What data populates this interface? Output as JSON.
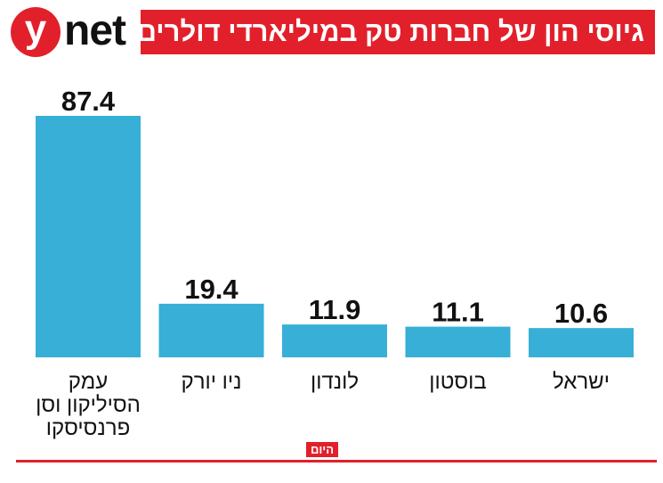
{
  "brand": {
    "y_letter": "y",
    "net_text": "net"
  },
  "header": {
    "title": "גיוסי הון של חברות טק במיליארדי דולרים"
  },
  "source": {
    "label": "היום"
  },
  "colors": {
    "bar": "#38afd6",
    "accent": "#e2202b",
    "text": "#111111"
  },
  "chart_data": {
    "type": "bar",
    "title": "גיוסי הון של חברות טק במיליארדי דולרים",
    "xlabel": "",
    "ylabel": "",
    "ylim": [
      0,
      87.4
    ],
    "grid": false,
    "categories": [
      [
        "עמק",
        "הסיליקון וסן",
        "פרנסיסקו"
      ],
      [
        "ניו יורק"
      ],
      [
        "לונדון"
      ],
      [
        "בוסטון"
      ],
      [
        "ישראל"
      ]
    ],
    "values": [
      87.4,
      19.4,
      11.9,
      11.1,
      10.6
    ],
    "value_labels": [
      "87.4",
      "19.4",
      "11.9",
      "11.1",
      "10.6"
    ]
  }
}
